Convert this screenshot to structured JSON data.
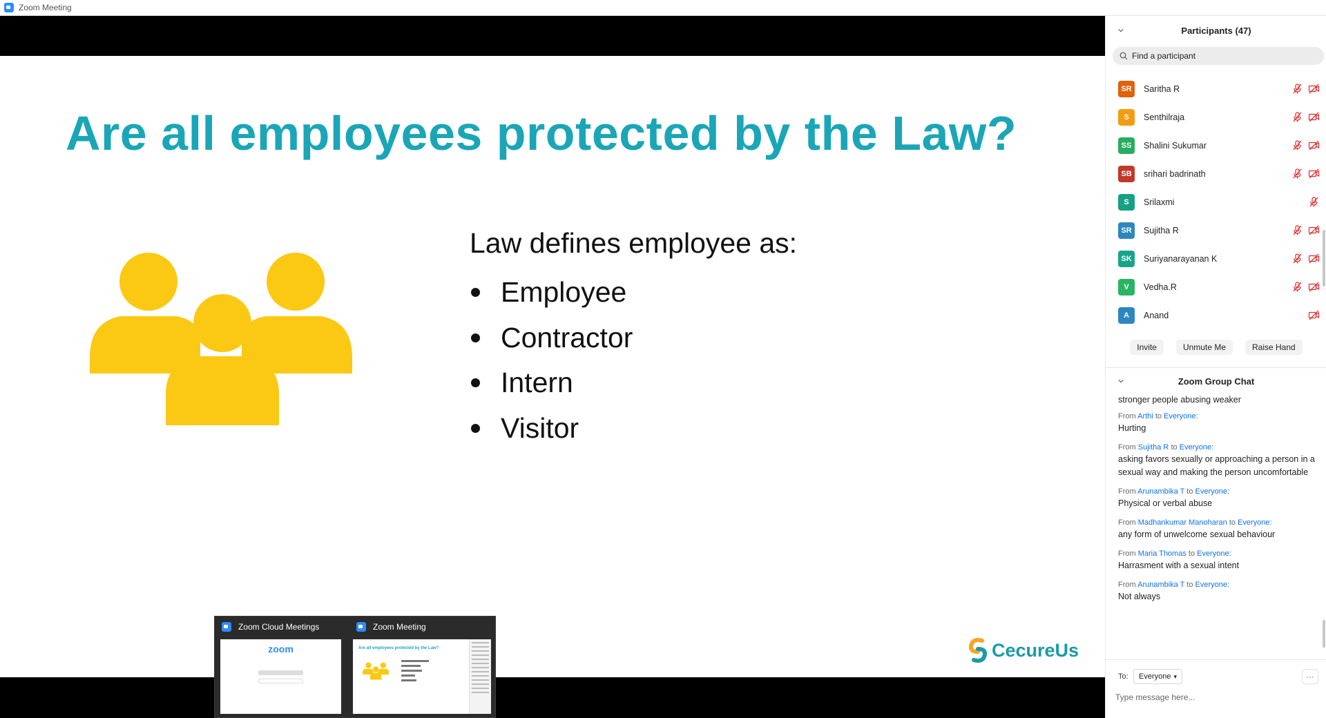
{
  "window": {
    "title": "Zoom Meeting",
    "icon": "zoom-app-icon"
  },
  "slide": {
    "title": "Are all employees protected by the Law?",
    "subhead": "Law defines employee as:",
    "bullets": [
      "Employee",
      "Contractor",
      "Intern",
      "Visitor"
    ],
    "logo_text": "CecureUs",
    "title_color": "#1aa6b7",
    "icon_color": "#fbc913"
  },
  "slide_controls": [
    "previous-arrow-icon",
    "pen-icon",
    "notes-icon",
    "next-arrow-icon"
  ],
  "taskbar_preview": {
    "items": [
      {
        "title": "Zoom Cloud Meetings",
        "thumb_brand": "zoom"
      },
      {
        "title": "Zoom Meeting",
        "thumb_title": "Are all employees protected by the Law?"
      }
    ]
  },
  "participants": {
    "title": "Participants (47)",
    "search_placeholder": "Find a participant",
    "list": [
      {
        "initials": "SR",
        "name": "Saritha R",
        "color": "#e0620d",
        "muted": true,
        "video_off": true
      },
      {
        "initials": "S",
        "name": "Senthilraja",
        "color": "#f39c12",
        "muted": true,
        "video_off": true
      },
      {
        "initials": "SS",
        "name": "Shalini Sukumar",
        "color": "#27ae60",
        "muted": true,
        "video_off": true
      },
      {
        "initials": "SB",
        "name": "srihari badrinath",
        "color": "#c0392b",
        "muted": true,
        "video_off": true
      },
      {
        "initials": "S",
        "name": "Srilaxmi",
        "color": "#16a085",
        "muted": true,
        "video_off": false
      },
      {
        "initials": "SR",
        "name": "Sujitha R",
        "color": "#2e86c1",
        "muted": true,
        "video_off": true
      },
      {
        "initials": "SK",
        "name": "Suriyanarayanan K",
        "color": "#17a589",
        "muted": true,
        "video_off": true
      },
      {
        "initials": "V",
        "name": "Vedha.R",
        "color": "#28b463",
        "muted": true,
        "video_off": true
      },
      {
        "initials": "A",
        "name": "Anand",
        "color": "#2e86c1",
        "muted": false,
        "video_off": true
      }
    ],
    "buttons": {
      "invite": "Invite",
      "unmute": "Unmute Me",
      "raise_hand": "Raise Hand"
    }
  },
  "chat": {
    "title": "Zoom Group Chat",
    "truncated_text": "stronger people abusing weaker",
    "from_label": "From",
    "to_label": "to",
    "everyone_label": "Everyone:",
    "messages": [
      {
        "from": "Arthi",
        "text": "Hurting"
      },
      {
        "from": "Sujitha R",
        "text": "asking favors sexually or approaching a person in a sexual way and making the person uncomfortable"
      },
      {
        "from": "Arunambika T",
        "text": "Physical or verbal abuse"
      },
      {
        "from": "Madhankumar Manoharan",
        "text": "any form of unwelcome sexual behaviour"
      },
      {
        "from": "Maria Thomas",
        "text": "Harrasment with a sexual intent"
      },
      {
        "from": "Arunambika T",
        "text": "Not always"
      }
    ],
    "to": "To:",
    "recipient": "Everyone",
    "more": "···",
    "input_placeholder": "Type message here..."
  }
}
